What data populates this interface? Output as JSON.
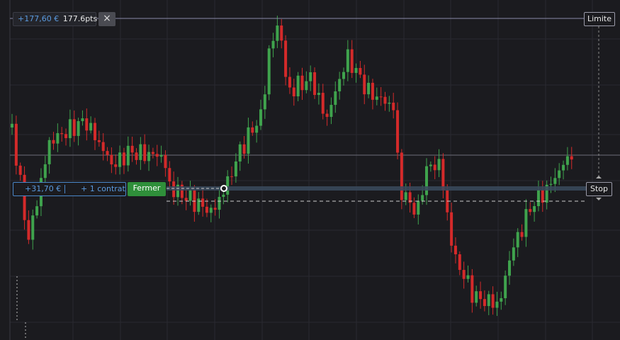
{
  "top_badge": {
    "amount": "+177,60 €",
    "points": "177.6pts",
    "close_icon": "×"
  },
  "limit_label": "Limite",
  "position": {
    "pnl": "+31,70 €",
    "size": "+ 1 contrat",
    "close_button": "Fermer"
  },
  "stop_label": "Stop"
}
